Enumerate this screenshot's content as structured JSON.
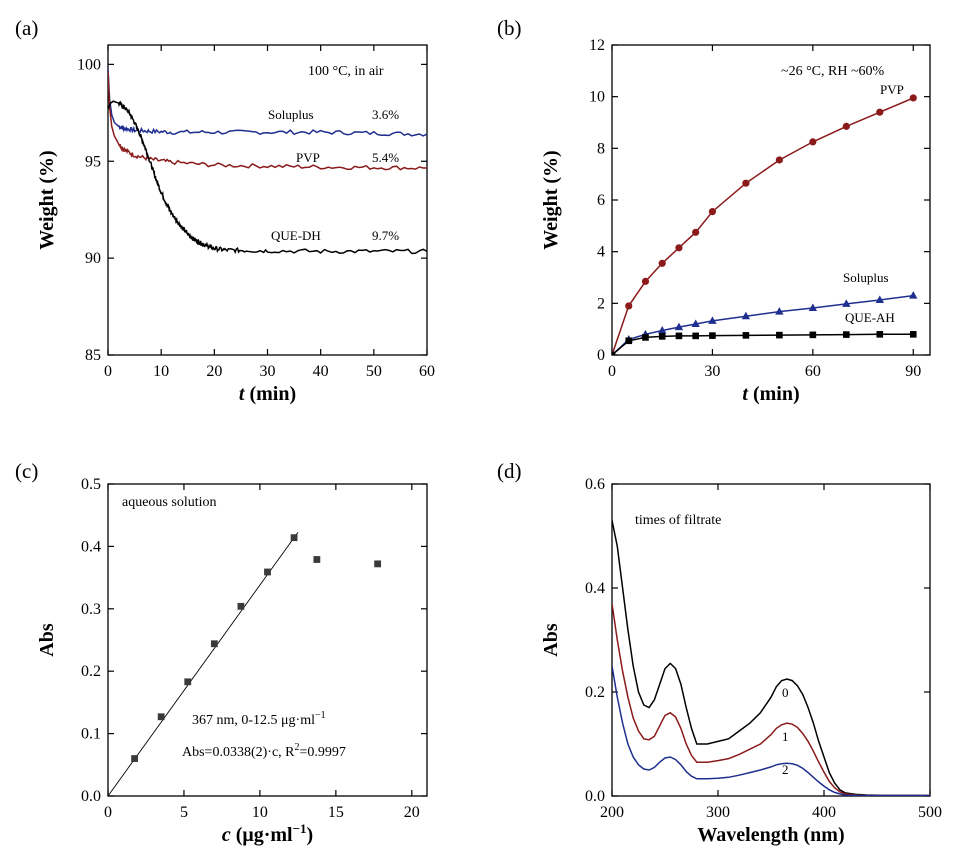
{
  "chart_data": [
    {
      "panel": "(a)",
      "type": "line",
      "xlabel_italic": "t",
      "xlabel_rest": " (min)",
      "ylabel": "Weight (%)",
      "xlim": [
        0,
        60
      ],
      "ylim": [
        85,
        101
      ],
      "xticks": [
        0,
        10,
        20,
        30,
        40,
        50,
        60
      ],
      "yticks": [
        85,
        90,
        95,
        100
      ],
      "annotation": "100 °C, in air",
      "series": [
        {
          "name": "Soluplus",
          "value_label": "3.6%",
          "color": "#1f2f8f",
          "x": [
            0,
            0.3,
            0.7,
            1.2,
            2,
            3,
            5,
            8,
            12,
            20,
            30,
            40,
            50,
            60
          ],
          "y": [
            99.8,
            98.2,
            97.4,
            97.0,
            96.8,
            96.7,
            96.6,
            96.55,
            96.5,
            96.5,
            96.5,
            96.5,
            96.45,
            96.4
          ]
        },
        {
          "name": "PVP",
          "value_label": "5.4%",
          "color": "#8b1a1a",
          "x": [
            0,
            0.3,
            0.7,
            1.2,
            2,
            3,
            5,
            8,
            12,
            20,
            30,
            40,
            50,
            60
          ],
          "y": [
            99.6,
            97.8,
            96.8,
            96.3,
            95.9,
            95.6,
            95.3,
            95.1,
            94.95,
            94.8,
            94.75,
            94.7,
            94.68,
            94.65
          ]
        },
        {
          "name": "QUE-DH",
          "value_label": "9.7%",
          "color": "#000000",
          "x": [
            0,
            0.5,
            1,
            2,
            3,
            4,
            5,
            6,
            7,
            8,
            9,
            10,
            11,
            12,
            13,
            14,
            15,
            16,
            17,
            18,
            19,
            20,
            22,
            25,
            30,
            40,
            50,
            60
          ],
          "y": [
            97.7,
            98.0,
            98.1,
            98.0,
            97.8,
            97.5,
            97.0,
            96.4,
            95.7,
            94.9,
            94.1,
            93.4,
            92.8,
            92.3,
            91.9,
            91.55,
            91.25,
            91.0,
            90.85,
            90.7,
            90.6,
            90.5,
            90.42,
            90.4,
            90.38,
            90.35,
            90.35,
            90.35
          ]
        }
      ],
      "noise": true
    },
    {
      "panel": "(b)",
      "type": "line",
      "xlabel_italic": "t",
      "xlabel_rest": " (min)",
      "ylabel": "Weight (%)",
      "xlim": [
        0,
        95
      ],
      "ylim": [
        0,
        12
      ],
      "xticks": [
        0,
        30,
        60,
        90
      ],
      "yticks": [
        0,
        2,
        4,
        6,
        8,
        10,
        12
      ],
      "annotation": "~26 °C, RH ~60%",
      "series": [
        {
          "name": "PVP",
          "color": "#8b1a1a",
          "marker": "circle",
          "x": [
            0,
            5,
            10,
            15,
            20,
            25,
            30,
            40,
            50,
            60,
            70,
            80,
            90
          ],
          "y": [
            0,
            1.9,
            2.85,
            3.55,
            4.15,
            4.75,
            5.55,
            6.65,
            7.55,
            8.25,
            8.85,
            9.4,
            9.95
          ]
        },
        {
          "name": "Soluplus",
          "color": "#1f2f8f",
          "marker": "triangle",
          "x": [
            0,
            5,
            10,
            15,
            20,
            25,
            30,
            40,
            50,
            60,
            70,
            80,
            90
          ],
          "y": [
            0,
            0.6,
            0.8,
            0.95,
            1.08,
            1.2,
            1.32,
            1.5,
            1.68,
            1.82,
            1.98,
            2.13,
            2.3
          ]
        },
        {
          "name": "QUE-AH",
          "color": "#000000",
          "marker": "square",
          "x": [
            0,
            5,
            10,
            15,
            20,
            25,
            30,
            40,
            50,
            60,
            70,
            80,
            90
          ],
          "y": [
            0,
            0.55,
            0.68,
            0.72,
            0.74,
            0.74,
            0.75,
            0.76,
            0.77,
            0.78,
            0.79,
            0.8,
            0.8
          ]
        }
      ]
    },
    {
      "panel": "(c)",
      "type": "scatter",
      "xlabel_italic": "c",
      "xlabel_rest": " (μg·ml",
      "xlabel_sup": "−1",
      "xlabel_close": ")",
      "ylabel": "Abs",
      "xlim": [
        0,
        21
      ],
      "ylim": [
        0,
        0.5
      ],
      "xticks": [
        0,
        5,
        10,
        15,
        20
      ],
      "yticks": [
        0.0,
        0.1,
        0.2,
        0.3,
        0.4,
        0.5
      ],
      "annotation": "aqueous solution",
      "fit_label_1": "367 nm, 0-12.5 μg·ml",
      "fit_label_1_sup": "−1",
      "fit_label_2a": "Abs=0.0338(2)·c, R",
      "fit_label_2_sup": "2",
      "fit_label_2b": "=0.9997",
      "fit": {
        "slope": 0.0338,
        "x_range": [
          0,
          12.5
        ]
      },
      "points": {
        "x": [
          1.75,
          3.5,
          5.25,
          7.0,
          8.75,
          10.5,
          12.25,
          13.75,
          17.75
        ],
        "y": [
          0.06,
          0.127,
          0.183,
          0.244,
          0.304,
          0.359,
          0.414,
          0.379,
          0.372
        ]
      }
    },
    {
      "panel": "(d)",
      "type": "line",
      "xlabel": "Wavelength (nm)",
      "ylabel": "Abs",
      "xlim": [
        200,
        500
      ],
      "ylim": [
        0,
        0.6
      ],
      "xticks": [
        200,
        300,
        400,
        500
      ],
      "yticks": [
        0.0,
        0.2,
        0.4,
        0.6
      ],
      "annotation": "times of filtrate",
      "series": [
        {
          "name": "0",
          "color": "#000000",
          "x": [
            200,
            205,
            210,
            215,
            220,
            225,
            230,
            235,
            240,
            245,
            250,
            255,
            260,
            265,
            270,
            275,
            280,
            290,
            300,
            310,
            320,
            330,
            340,
            350,
            355,
            360,
            365,
            370,
            375,
            380,
            385,
            390,
            395,
            400,
            405,
            410,
            415,
            420,
            430,
            440,
            460,
            480,
            500
          ],
          "y": [
            0.53,
            0.48,
            0.4,
            0.32,
            0.25,
            0.2,
            0.175,
            0.17,
            0.185,
            0.215,
            0.245,
            0.255,
            0.245,
            0.215,
            0.17,
            0.13,
            0.1,
            0.1,
            0.105,
            0.11,
            0.125,
            0.14,
            0.16,
            0.19,
            0.21,
            0.222,
            0.225,
            0.222,
            0.212,
            0.195,
            0.17,
            0.14,
            0.105,
            0.075,
            0.045,
            0.025,
            0.012,
            0.006,
            0.003,
            0.002,
            0.001,
            0.001,
            0.001
          ]
        },
        {
          "name": "1",
          "color": "#8b1a1a",
          "x": [
            200,
            205,
            210,
            215,
            220,
            225,
            230,
            235,
            240,
            245,
            250,
            255,
            260,
            265,
            270,
            275,
            280,
            290,
            300,
            310,
            320,
            330,
            340,
            350,
            355,
            360,
            365,
            370,
            375,
            380,
            385,
            390,
            395,
            400,
            405,
            410,
            415,
            420,
            430,
            440,
            460,
            480,
            500
          ],
          "y": [
            0.37,
            0.3,
            0.24,
            0.19,
            0.15,
            0.125,
            0.11,
            0.108,
            0.115,
            0.135,
            0.155,
            0.16,
            0.152,
            0.13,
            0.1,
            0.078,
            0.065,
            0.065,
            0.068,
            0.072,
            0.08,
            0.09,
            0.1,
            0.118,
            0.13,
            0.137,
            0.14,
            0.138,
            0.132,
            0.12,
            0.105,
            0.086,
            0.065,
            0.046,
            0.028,
            0.016,
            0.008,
            0.004,
            0.002,
            0.001,
            0.001,
            0.001,
            0.001
          ]
        },
        {
          "name": "2",
          "color": "#1f2f8f",
          "x": [
            200,
            205,
            210,
            215,
            220,
            225,
            230,
            235,
            240,
            245,
            250,
            255,
            260,
            265,
            270,
            275,
            280,
            290,
            300,
            310,
            320,
            330,
            340,
            350,
            355,
            360,
            365,
            370,
            375,
            380,
            385,
            390,
            395,
            400,
            405,
            410,
            415,
            420,
            430,
            440,
            460,
            480,
            500
          ],
          "y": [
            0.25,
            0.19,
            0.14,
            0.1,
            0.075,
            0.06,
            0.052,
            0.05,
            0.055,
            0.065,
            0.073,
            0.075,
            0.07,
            0.06,
            0.047,
            0.038,
            0.033,
            0.033,
            0.034,
            0.036,
            0.04,
            0.045,
            0.05,
            0.056,
            0.06,
            0.062,
            0.063,
            0.062,
            0.059,
            0.053,
            0.045,
            0.036,
            0.027,
            0.019,
            0.012,
            0.007,
            0.004,
            0.002,
            0.001,
            0.001,
            0.001,
            0.001,
            0.001
          ]
        }
      ]
    }
  ]
}
